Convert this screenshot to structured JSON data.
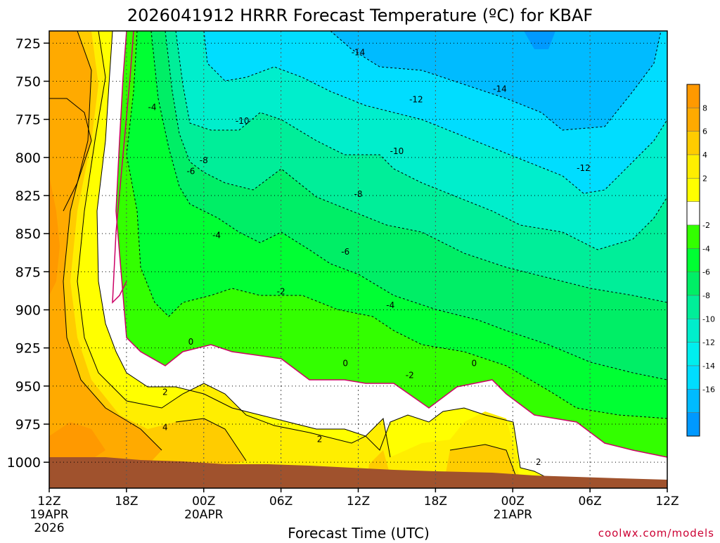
{
  "chart_data": {
    "type": "contour",
    "title": "2026041912 HRRR Forecast Temperature (ºC) for KBAF",
    "xlabel": "Forecast Time (UTC)",
    "ylabel": "",
    "credit": "coolwx.com/models",
    "y_ticks": [
      "725",
      "750",
      "775",
      "800",
      "825",
      "850",
      "875",
      "900",
      "925",
      "950",
      "975",
      "1000"
    ],
    "y_values": [
      725,
      750,
      775,
      800,
      825,
      850,
      875,
      900,
      925,
      950,
      975,
      1000
    ],
    "ylim": [
      717,
      1017
    ],
    "x_ticks": [
      {
        "hour": 0,
        "label": "12Z",
        "date": "19APR",
        "year": "2026"
      },
      {
        "hour": 6,
        "label": "18Z",
        "date": "",
        "year": ""
      },
      {
        "hour": 12,
        "label": "00Z",
        "date": "20APR",
        "year": ""
      },
      {
        "hour": 18,
        "label": "06Z",
        "date": "",
        "year": ""
      },
      {
        "hour": 24,
        "label": "12Z",
        "date": "",
        "year": ""
      },
      {
        "hour": 30,
        "label": "18Z",
        "date": "",
        "year": ""
      },
      {
        "hour": 36,
        "label": "00Z",
        "date": "21APR",
        "year": ""
      },
      {
        "hour": 42,
        "label": "06Z",
        "date": "",
        "year": ""
      },
      {
        "hour": 48,
        "label": "12Z",
        "date": "",
        "year": ""
      }
    ],
    "xlim": [
      0,
      48
    ],
    "colorbar": {
      "labels": [
        "8",
        "6",
        "4",
        "2",
        "-2",
        "-4",
        "-6",
        "-8",
        "-10",
        "-12",
        "-14",
        "-16"
      ],
      "colors": [
        "#ff9900",
        "#ffaa00",
        "#ffcc00",
        "#ffee00",
        "#ffff00",
        "#ffffff",
        "#33ff00",
        "#00ff33",
        "#00ee66",
        "#00ee99",
        "#00eecc",
        "#00eeee",
        "#00ddff",
        "#00bbff",
        "#0099ff"
      ]
    },
    "contour_labels": [
      {
        "text": "-14",
        "hour": 24.0,
        "p": 731
      },
      {
        "text": "-14",
        "hour": 35.0,
        "p": 755
      },
      {
        "text": "-12",
        "hour": 28.5,
        "p": 762
      },
      {
        "text": "-12",
        "hour": 41.5,
        "p": 807
      },
      {
        "text": "-10",
        "hour": 15.0,
        "p": 776
      },
      {
        "text": "-10",
        "hour": 27.0,
        "p": 796
      },
      {
        "text": "-8",
        "hour": 24.0,
        "p": 824
      },
      {
        "text": "-8",
        "hour": 12.0,
        "p": 802
      },
      {
        "text": "-6",
        "hour": 11.0,
        "p": 809
      },
      {
        "text": "-6",
        "hour": 23.0,
        "p": 862
      },
      {
        "text": "-4",
        "hour": 8.0,
        "p": 767
      },
      {
        "text": "-4",
        "hour": 13.0,
        "p": 851
      },
      {
        "text": "-4",
        "hour": 26.5,
        "p": 897
      },
      {
        "text": "-2",
        "hour": 18.0,
        "p": 888
      },
      {
        "text": "-2",
        "hour": 28.0,
        "p": 943
      },
      {
        "text": "0",
        "hour": 11.0,
        "p": 921
      },
      {
        "text": "0",
        "hour": 23.0,
        "p": 935
      },
      {
        "text": "0",
        "hour": 33.0,
        "p": 935
      },
      {
        "text": "2",
        "hour": 9.0,
        "p": 954
      },
      {
        "text": "2",
        "hour": 21.0,
        "p": 985
      },
      {
        "text": "2",
        "hour": 38.0,
        "p": 1000
      },
      {
        "text": "4",
        "hour": 9.0,
        "p": 977
      }
    ]
  }
}
